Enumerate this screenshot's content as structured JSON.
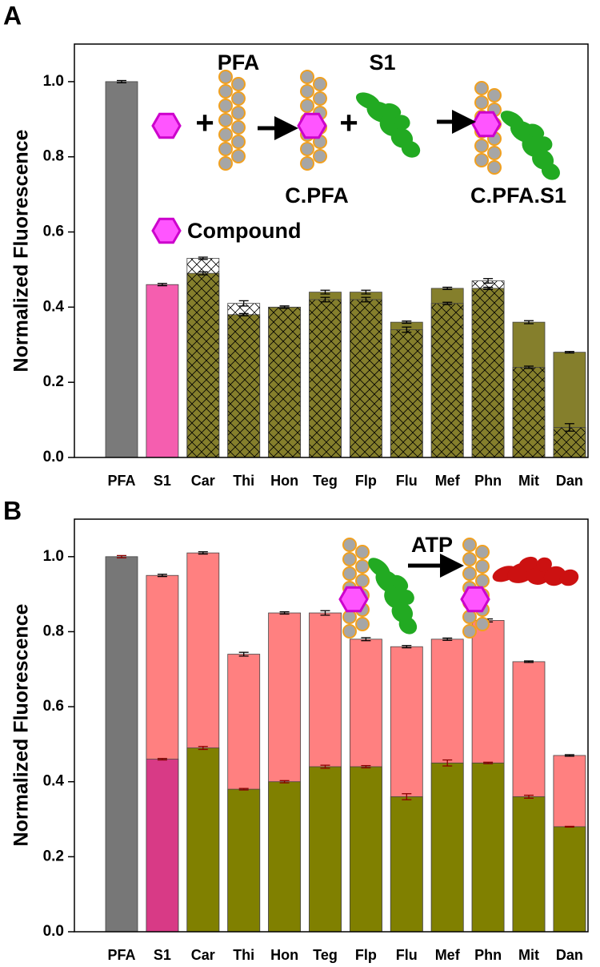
{
  "chart_data": [
    {
      "type": "bar",
      "panel": "A",
      "ylabel": "Normalized Fluorescence",
      "categories": [
        "PFA",
        "S1",
        "Car",
        "Thi",
        "Hon",
        "Teg",
        "Flp",
        "Flu",
        "Mef",
        "Phn",
        "Mit",
        "Dan"
      ],
      "ylim": [
        0,
        1.1
      ],
      "yticks": [
        {
          "value": 0,
          "label": "0.0"
        },
        {
          "value": 0.2,
          "label": "0.2"
        },
        {
          "value": 0.4,
          "label": "0.4"
        },
        {
          "value": 0.6,
          "label": "0.6"
        },
        {
          "value": 0.8,
          "label": "0.8"
        },
        {
          "value": 1,
          "label": "1.0"
        }
      ],
      "series": [
        {
          "values": [
            1.0,
            0.46,
            0.49,
            0.38,
            0.4,
            0.44,
            0.44,
            0.36,
            0.45,
            0.45,
            0.36,
            0.28
          ],
          "errors": [
            0.003,
            0.003,
            0.004,
            0.003,
            0.003,
            0.005,
            0.005,
            0.003,
            0.003,
            0.003,
            0.004,
            0.002
          ],
          "colors": [
            "#7a7a7a",
            "#f55eaf",
            "#857f2c",
            "#857f2c",
            "#857f2c",
            "#857f2c",
            "#857f2c",
            "#857f2c",
            "#857f2c",
            "#857f2c",
            "#857f2c",
            "#857f2c"
          ],
          "error_color": "#000000"
        },
        {
          "values": [
            null,
            null,
            0.53,
            0.41,
            0.4,
            0.42,
            0.42,
            0.34,
            0.41,
            0.47,
            0.24,
            0.08
          ],
          "errors": [
            null,
            null,
            0.003,
            0.007,
            0.003,
            0.006,
            0.006,
            0.007,
            0.003,
            0.006,
            0.003,
            0.01
          ],
          "hatch": true,
          "color": "#000000",
          "error_color": "#000000"
        }
      ],
      "annotations": [
        "PFA",
        "S1",
        "C.PFA",
        "C.PFA.S1",
        "Compound",
        "+",
        "+"
      ]
    },
    {
      "type": "bar",
      "panel": "B",
      "ylabel": "Normalized Fluorescence",
      "categories": [
        "PFA",
        "S1",
        "Car",
        "Thi",
        "Hon",
        "Teg",
        "Flp",
        "Flu",
        "Mef",
        "Phn",
        "Mit",
        "Dan"
      ],
      "ylim": [
        0,
        1.1
      ],
      "yticks": [
        {
          "value": 0,
          "label": "0.0"
        },
        {
          "value": 0.2,
          "label": "0.2"
        },
        {
          "value": 0.4,
          "label": "0.4"
        },
        {
          "value": 0.6,
          "label": "0.6"
        },
        {
          "value": 0.8,
          "label": "0.8"
        },
        {
          "value": 1,
          "label": "1.0"
        }
      ],
      "series": [
        {
          "values": [
            null,
            0.95,
            1.01,
            0.74,
            0.85,
            0.85,
            0.78,
            0.76,
            0.78,
            0.83,
            0.72,
            0.47
          ],
          "errors": [
            null,
            0.003,
            0.003,
            0.005,
            0.003,
            0.006,
            0.004,
            0.003,
            0.003,
            0.004,
            0.002,
            0.002
          ],
          "color": "#ff8080",
          "error_color": "#000000"
        },
        {
          "values": [
            1.0,
            0.46,
            0.49,
            0.38,
            0.4,
            0.44,
            0.44,
            0.36,
            0.45,
            0.45,
            0.36,
            0.28
          ],
          "errors": [
            0.003,
            0.002,
            0.004,
            0.002,
            0.003,
            0.004,
            0.003,
            0.008,
            0.008,
            0.002,
            0.004,
            0.001
          ],
          "colors": [
            "#777777",
            "#d83a86",
            "#808000",
            "#808000",
            "#808000",
            "#808000",
            "#808000",
            "#808000",
            "#808000",
            "#808000",
            "#808000",
            "#808000"
          ],
          "error_color": "#8b0000"
        }
      ],
      "annotations": [
        "ATP"
      ]
    }
  ]
}
